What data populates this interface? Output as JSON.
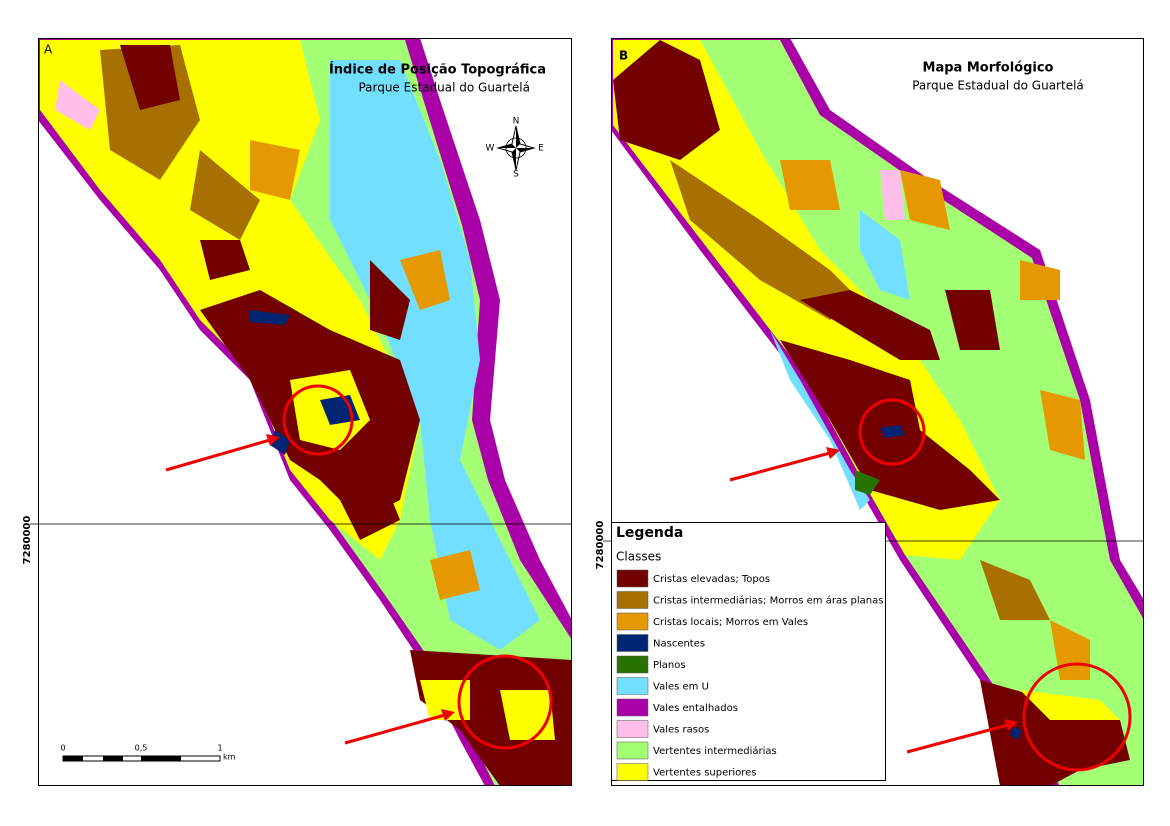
{
  "panels": [
    {
      "label": "A",
      "title": "Índice de Posição Topográfica",
      "subtitle": "Parque Estadual do Guartelá",
      "coordinate": "7280000",
      "scale_bar": {
        "ticks": [
          "0",
          "0,5",
          "1"
        ],
        "unit": "km"
      },
      "compass": {
        "north": "N",
        "south": "S",
        "east": "E",
        "west": "W"
      }
    },
    {
      "label": "B",
      "title": "Mapa Morfológico",
      "subtitle": "Parque Estadual do Guartelá",
      "coordinate": "7280000"
    }
  ],
  "legend": {
    "title": "Legenda",
    "subtitle": "Classes",
    "items": [
      {
        "label": "Cristas elevadas; Topos",
        "color": "#730000"
      },
      {
        "label": "Cristas intermediárias; Morros em áras planas",
        "color": "#a87000"
      },
      {
        "label": "Cristas locais; Morros em Vales",
        "color": "#e69800"
      },
      {
        "label": "Nascentes",
        "color": "#002673"
      },
      {
        "label": "Planos",
        "color": "#267300"
      },
      {
        "label": "Vales em U",
        "color": "#73dfff"
      },
      {
        "label": "Vales entalhados",
        "color": "#a900a8"
      },
      {
        "label": "Vales rasos",
        "color": "#ffbee8"
      },
      {
        "label": "Vertentes intermediárias",
        "color": "#a3ff73"
      },
      {
        "label": "Vertentes superiores",
        "color": "#ffff00"
      }
    ]
  }
}
